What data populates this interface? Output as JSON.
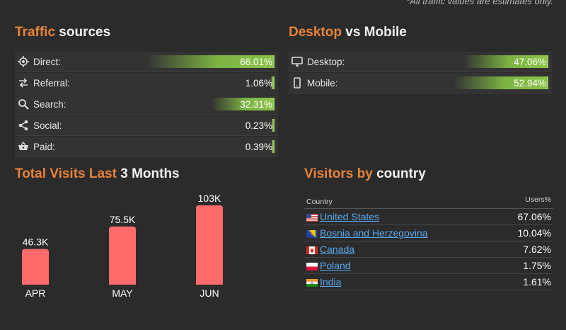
{
  "note": "*All traffic values are estimates only.",
  "traffic": {
    "title_accent": "Traffic",
    "title_rest": " sources",
    "items": [
      {
        "label": "Direct:",
        "value": "66.01%",
        "pct": 66.01,
        "icon": "target-icon"
      },
      {
        "label": "Referral:",
        "value": "1.06%",
        "pct": 1.06,
        "icon": "swap-arrows-icon"
      },
      {
        "label": "Search:",
        "value": "32.31%",
        "pct": 32.31,
        "icon": "search-icon"
      },
      {
        "label": "Social:",
        "value": "0.23%",
        "pct": 0.23,
        "icon": "share-icon"
      },
      {
        "label": "Paid:",
        "value": "0.39%",
        "pct": 0.39,
        "icon": "basket-icon"
      }
    ]
  },
  "device": {
    "title_accent": "Desktop",
    "title_rest": " vs Mobile",
    "items": [
      {
        "label": "Desktop:",
        "value": "47.06%",
        "pct": 47.06,
        "icon": "monitor-icon"
      },
      {
        "label": "Mobile:",
        "value": "52.94%",
        "pct": 52.94,
        "icon": "phone-icon"
      }
    ]
  },
  "visits": {
    "title_accent": "Total Visits Last",
    "title_rest": " 3 Months"
  },
  "chart_data": {
    "type": "bar",
    "categories": [
      "APR",
      "MAY",
      "JUN"
    ],
    "values": [
      46300,
      75500,
      103000
    ],
    "data_labels": [
      "46.3K",
      "75.5K",
      "103K"
    ],
    "bar_color": "#ff6b6b"
  },
  "countries": {
    "title_accent": "Visitors by",
    "title_rest": " country",
    "header_country": "Country",
    "header_users": "Users%",
    "rows": [
      {
        "name": "United States",
        "value": "67.06%",
        "flag": "us-flag-icon"
      },
      {
        "name": "Bosnia and Herzegovina",
        "value": "10.04%",
        "flag": "ba-flag-icon"
      },
      {
        "name": "Canada",
        "value": "7.62%",
        "flag": "ca-flag-icon"
      },
      {
        "name": "Poland",
        "value": "1.75%",
        "flag": "pl-flag-icon"
      },
      {
        "name": "India",
        "value": "1.61%",
        "flag": "in-flag-icon"
      }
    ]
  },
  "colors": {
    "accent": "#e8833a",
    "bar_green": "#8bc34a",
    "link": "#5aa9f0"
  }
}
